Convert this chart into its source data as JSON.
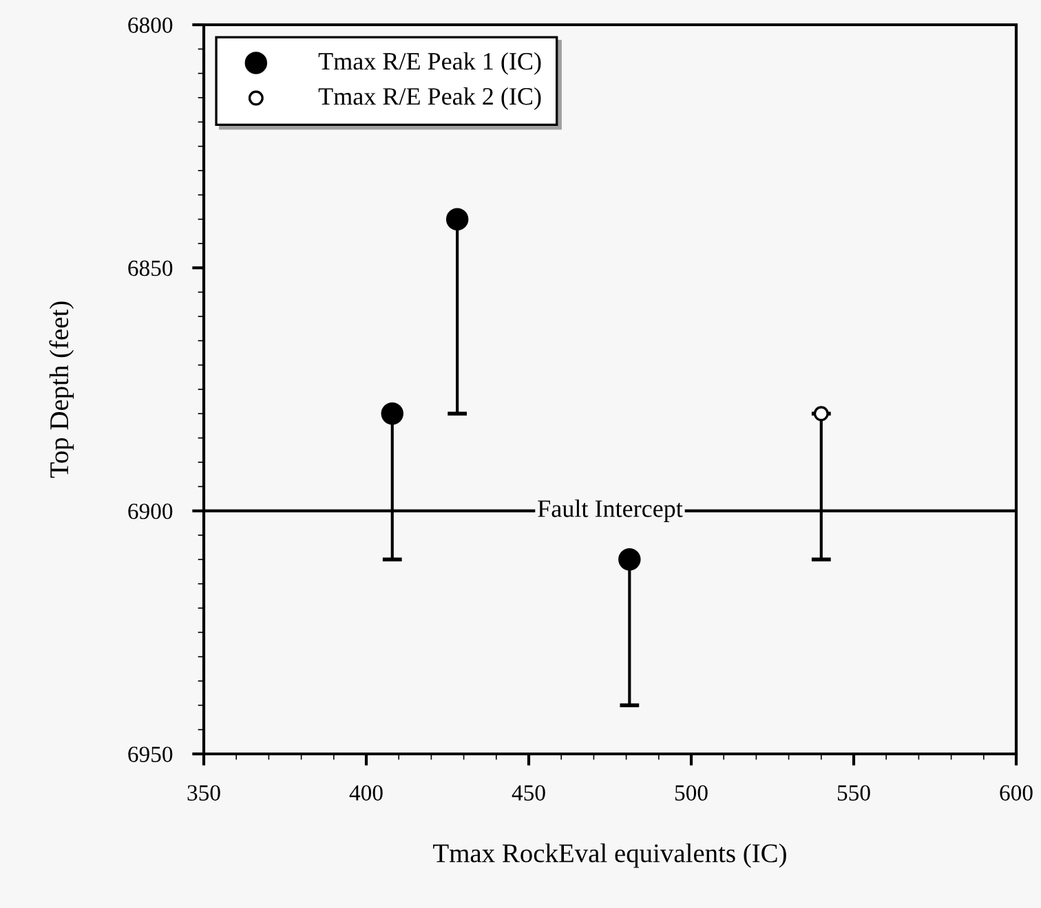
{
  "chart_data": {
    "type": "scatter",
    "xlabel": "Tmax RockEval equivalents (IC)",
    "ylabel": "Top Depth (feet)",
    "xlim": [
      350,
      600
    ],
    "xticks": [
      350,
      400,
      450,
      500,
      550,
      600
    ],
    "ylim": [
      6950,
      6800
    ],
    "yticks": [
      6800,
      6850,
      6900,
      6950
    ],
    "series": [
      {
        "name": "Tmax R/E Peak 1 (IC)",
        "color": "#000000",
        "x": [
          408,
          428,
          481
        ],
        "values": [
          6880,
          6840,
          6910
        ],
        "errors": [
          [
            6880,
            6910
          ],
          [
            6840,
            6880
          ],
          [
            6910,
            6940
          ]
        ]
      },
      {
        "name": "Tmax R/E Peak 2 (IC)",
        "color": "#ffffff",
        "x": [
          540
        ],
        "values": [
          6880
        ],
        "errors": [
          [
            6880,
            6910
          ]
        ]
      }
    ],
    "ref_lines": [
      {
        "axis": "y",
        "value": 6900,
        "label": "Fault Intercept",
        "color": "#000000"
      }
    ],
    "marker": "circle",
    "legend": "top left",
    "grid": false
  }
}
